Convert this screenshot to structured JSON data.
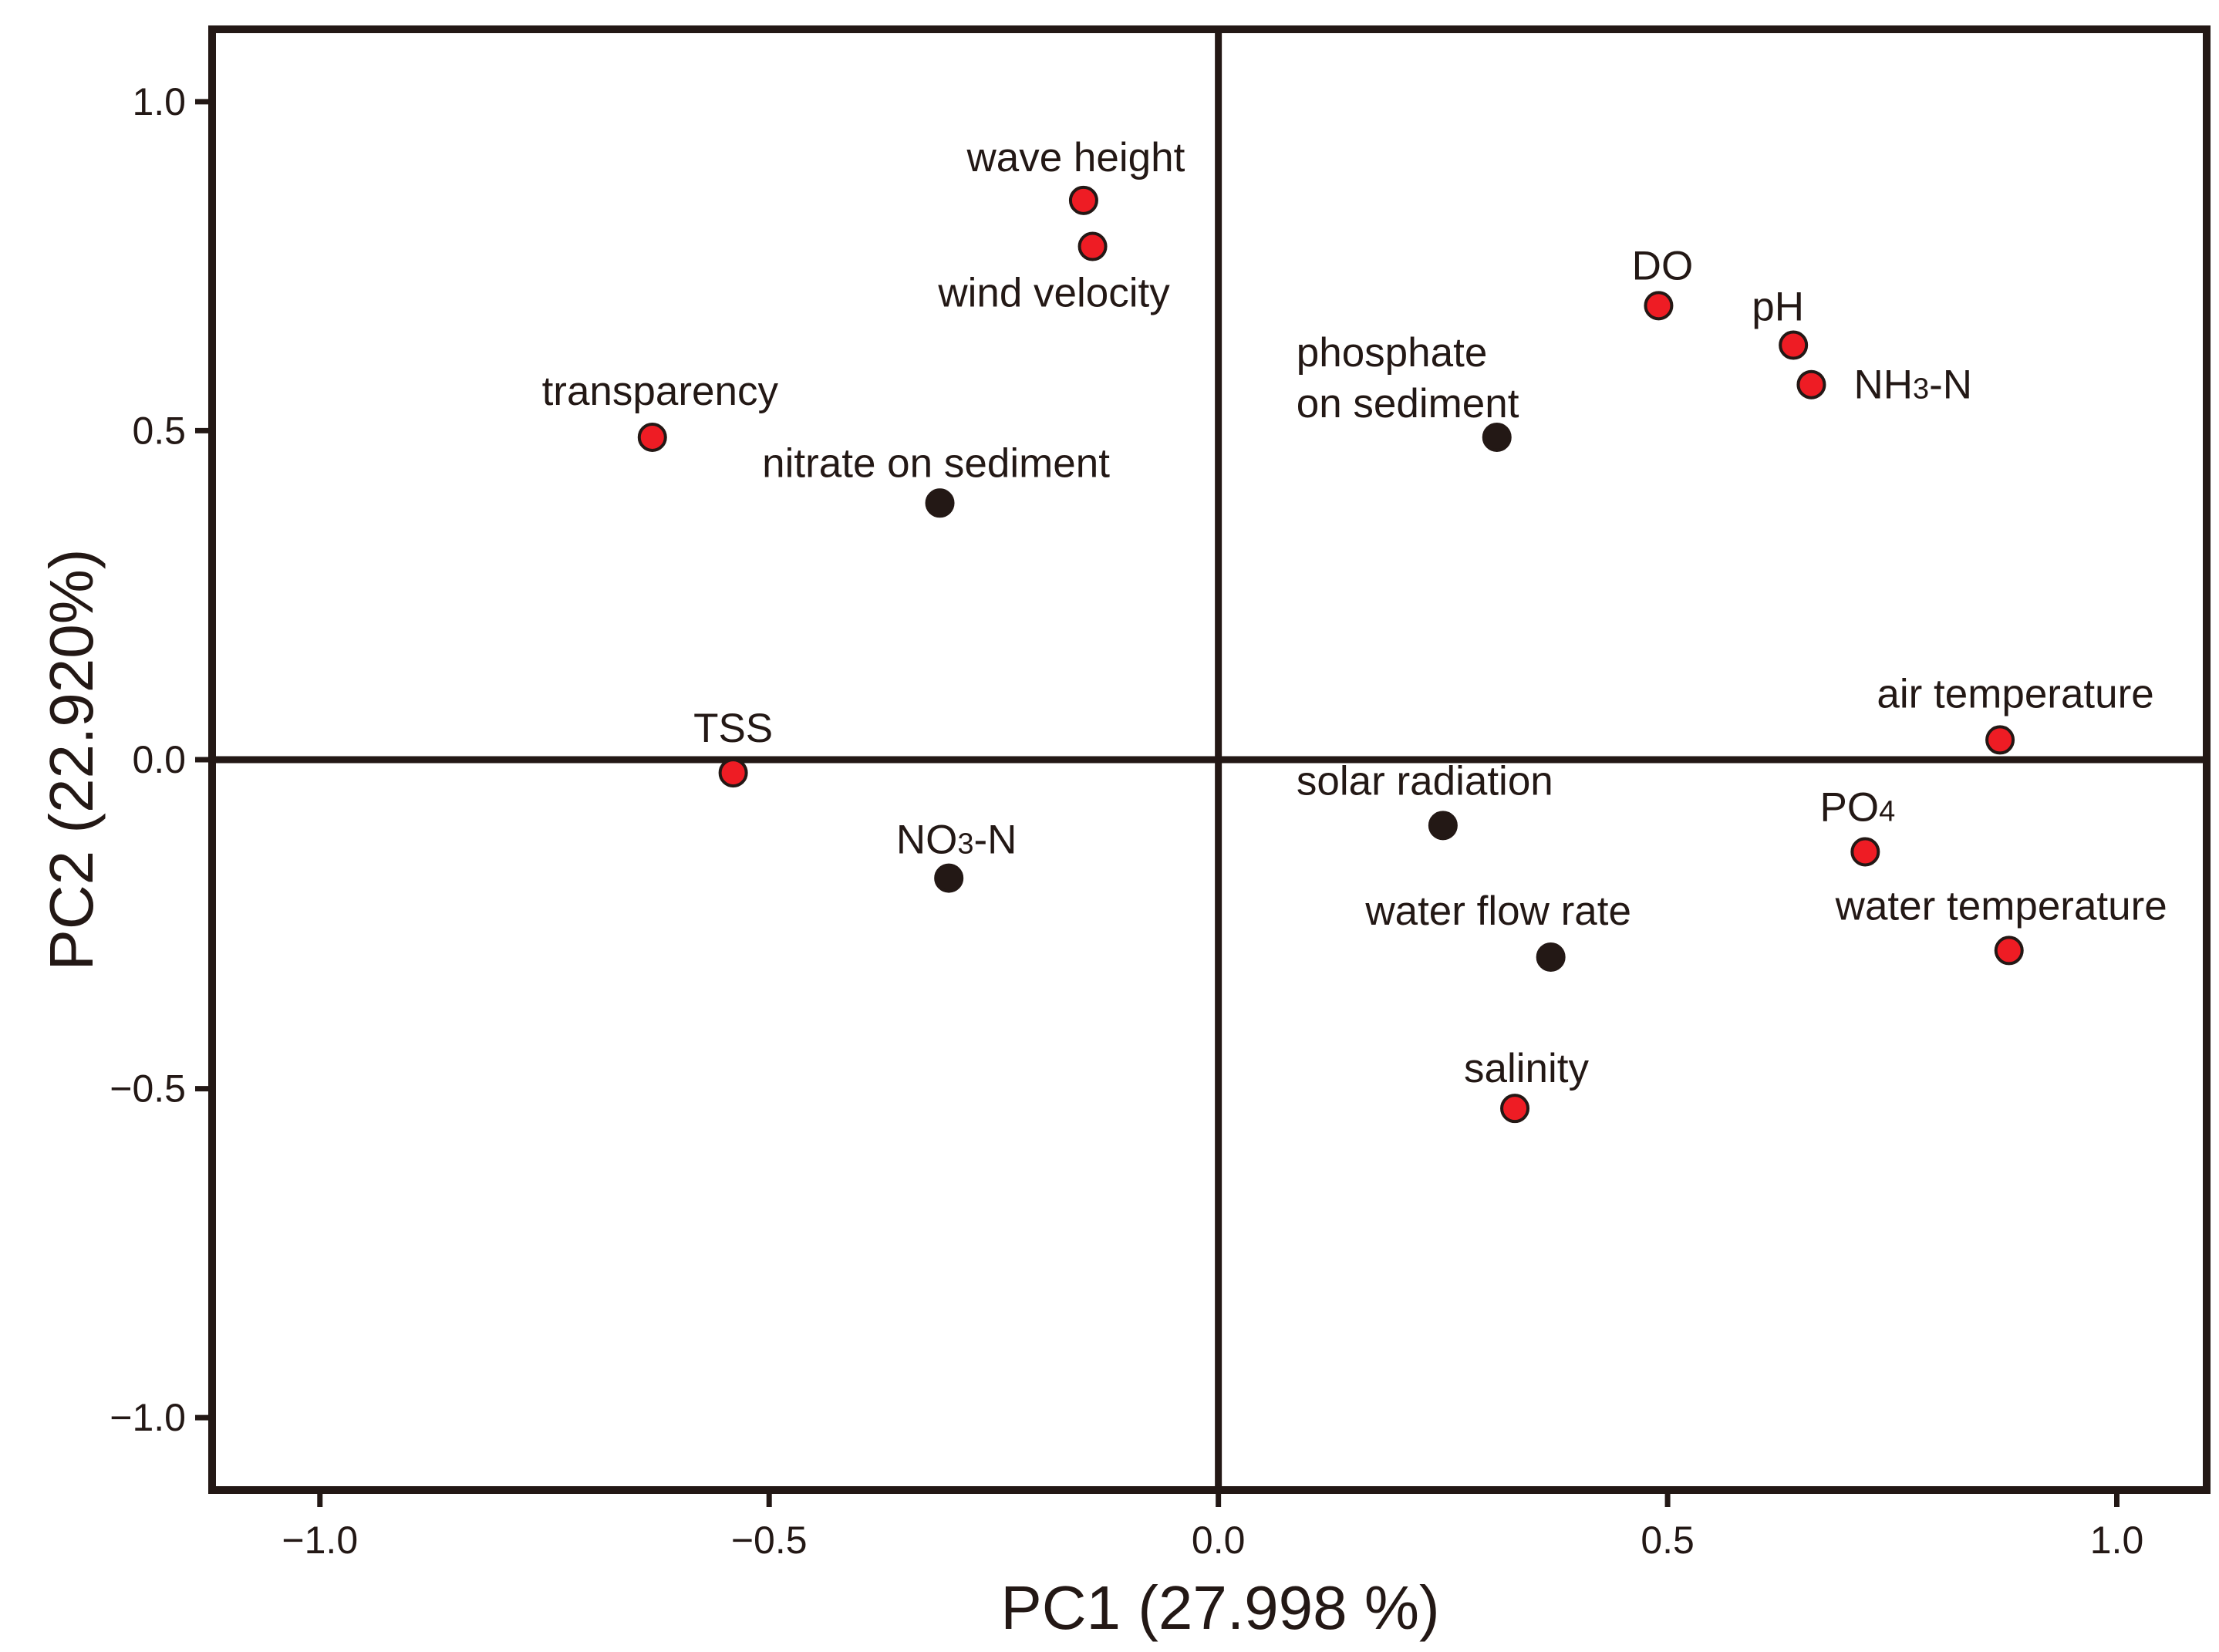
{
  "chart_data": {
    "type": "scatter",
    "title": "",
    "xlabel": "PC1 (27.998 %)",
    "ylabel": "PC2 (22.920%)",
    "xlim": [
      -1.12,
      1.1
    ],
    "ylim": [
      -1.11,
      1.11
    ],
    "x_ticks": [
      -1.0,
      -0.5,
      0.0,
      0.5,
      1.0
    ],
    "x_tick_labels": [
      "−1.0",
      "−0.5",
      "0.0",
      "0.5",
      "1.0"
    ],
    "y_ticks": [
      -1.0,
      -0.5,
      0.0,
      0.5,
      1.0
    ],
    "y_tick_labels": [
      "−1.0",
      "−0.5",
      "0.0",
      "0.5",
      "1.0"
    ],
    "grid": false,
    "colors": {
      "red": "#ee1c24",
      "black": "#231815",
      "frame": "#231815"
    },
    "points": [
      {
        "label": "wave height",
        "x": -0.15,
        "y": 0.85,
        "color": "red",
        "label_lines": [
          "wave height"
        ],
        "label_anchor": "middle"
      },
      {
        "label": "wind velocity",
        "x": -0.14,
        "y": 0.78,
        "color": "red",
        "label_lines": [
          "wind velocity"
        ],
        "label_anchor": "middle"
      },
      {
        "label": "transparency",
        "x": -0.63,
        "y": 0.49,
        "color": "red",
        "label_lines": [
          "transparency"
        ],
        "label_anchor": "middle"
      },
      {
        "label": "nitrate on sediment",
        "x": -0.31,
        "y": 0.39,
        "color": "black",
        "label_lines": [
          "nitrate on sediment"
        ],
        "label_anchor": "middle"
      },
      {
        "label": "DO",
        "x": 0.49,
        "y": 0.69,
        "color": "red",
        "label_lines": [
          "DO"
        ],
        "label_anchor": "middle"
      },
      {
        "label": "pH",
        "x": 0.64,
        "y": 0.63,
        "color": "red",
        "label_lines": [
          "pH"
        ],
        "label_anchor": "middle"
      },
      {
        "label": "NH3-N",
        "x": 0.66,
        "y": 0.57,
        "color": "red",
        "label_lines": [
          "NH3-N"
        ],
        "label_anchor": "start"
      },
      {
        "label": "phosphate on sediment",
        "x": 0.31,
        "y": 0.49,
        "color": "black",
        "label_lines": [
          "phosphate",
          "on sediment"
        ],
        "label_anchor": "start"
      },
      {
        "label": "TSS",
        "x": -0.54,
        "y": -0.02,
        "color": "red",
        "label_lines": [
          "TSS"
        ],
        "label_anchor": "middle"
      },
      {
        "label": "NO3-N",
        "x": -0.3,
        "y": -0.18,
        "color": "black",
        "label_lines": [
          "NO3-N"
        ],
        "label_anchor": "middle"
      },
      {
        "label": "air temperature",
        "x": 0.87,
        "y": 0.03,
        "color": "red",
        "label_lines": [
          "air temperature"
        ],
        "label_anchor": "middle"
      },
      {
        "label": "solar radiation",
        "x": 0.25,
        "y": -0.1,
        "color": "black",
        "label_lines": [
          "solar radiation"
        ],
        "label_anchor": "start"
      },
      {
        "label": "PO4",
        "x": 0.72,
        "y": -0.14,
        "color": "red",
        "label_lines": [
          "PO4"
        ],
        "label_anchor": "middle"
      },
      {
        "label": "water temperature",
        "x": 0.88,
        "y": -0.29,
        "color": "red",
        "label_lines": [
          "water temperature"
        ],
        "label_anchor": "middle"
      },
      {
        "label": "water flow rate",
        "x": 0.37,
        "y": -0.3,
        "color": "black",
        "label_lines": [
          "water flow rate"
        ],
        "label_anchor": "middle"
      },
      {
        "label": "salinity",
        "x": 0.33,
        "y": -0.53,
        "color": "red",
        "label_lines": [
          "salinity"
        ],
        "label_anchor": "middle"
      }
    ]
  }
}
